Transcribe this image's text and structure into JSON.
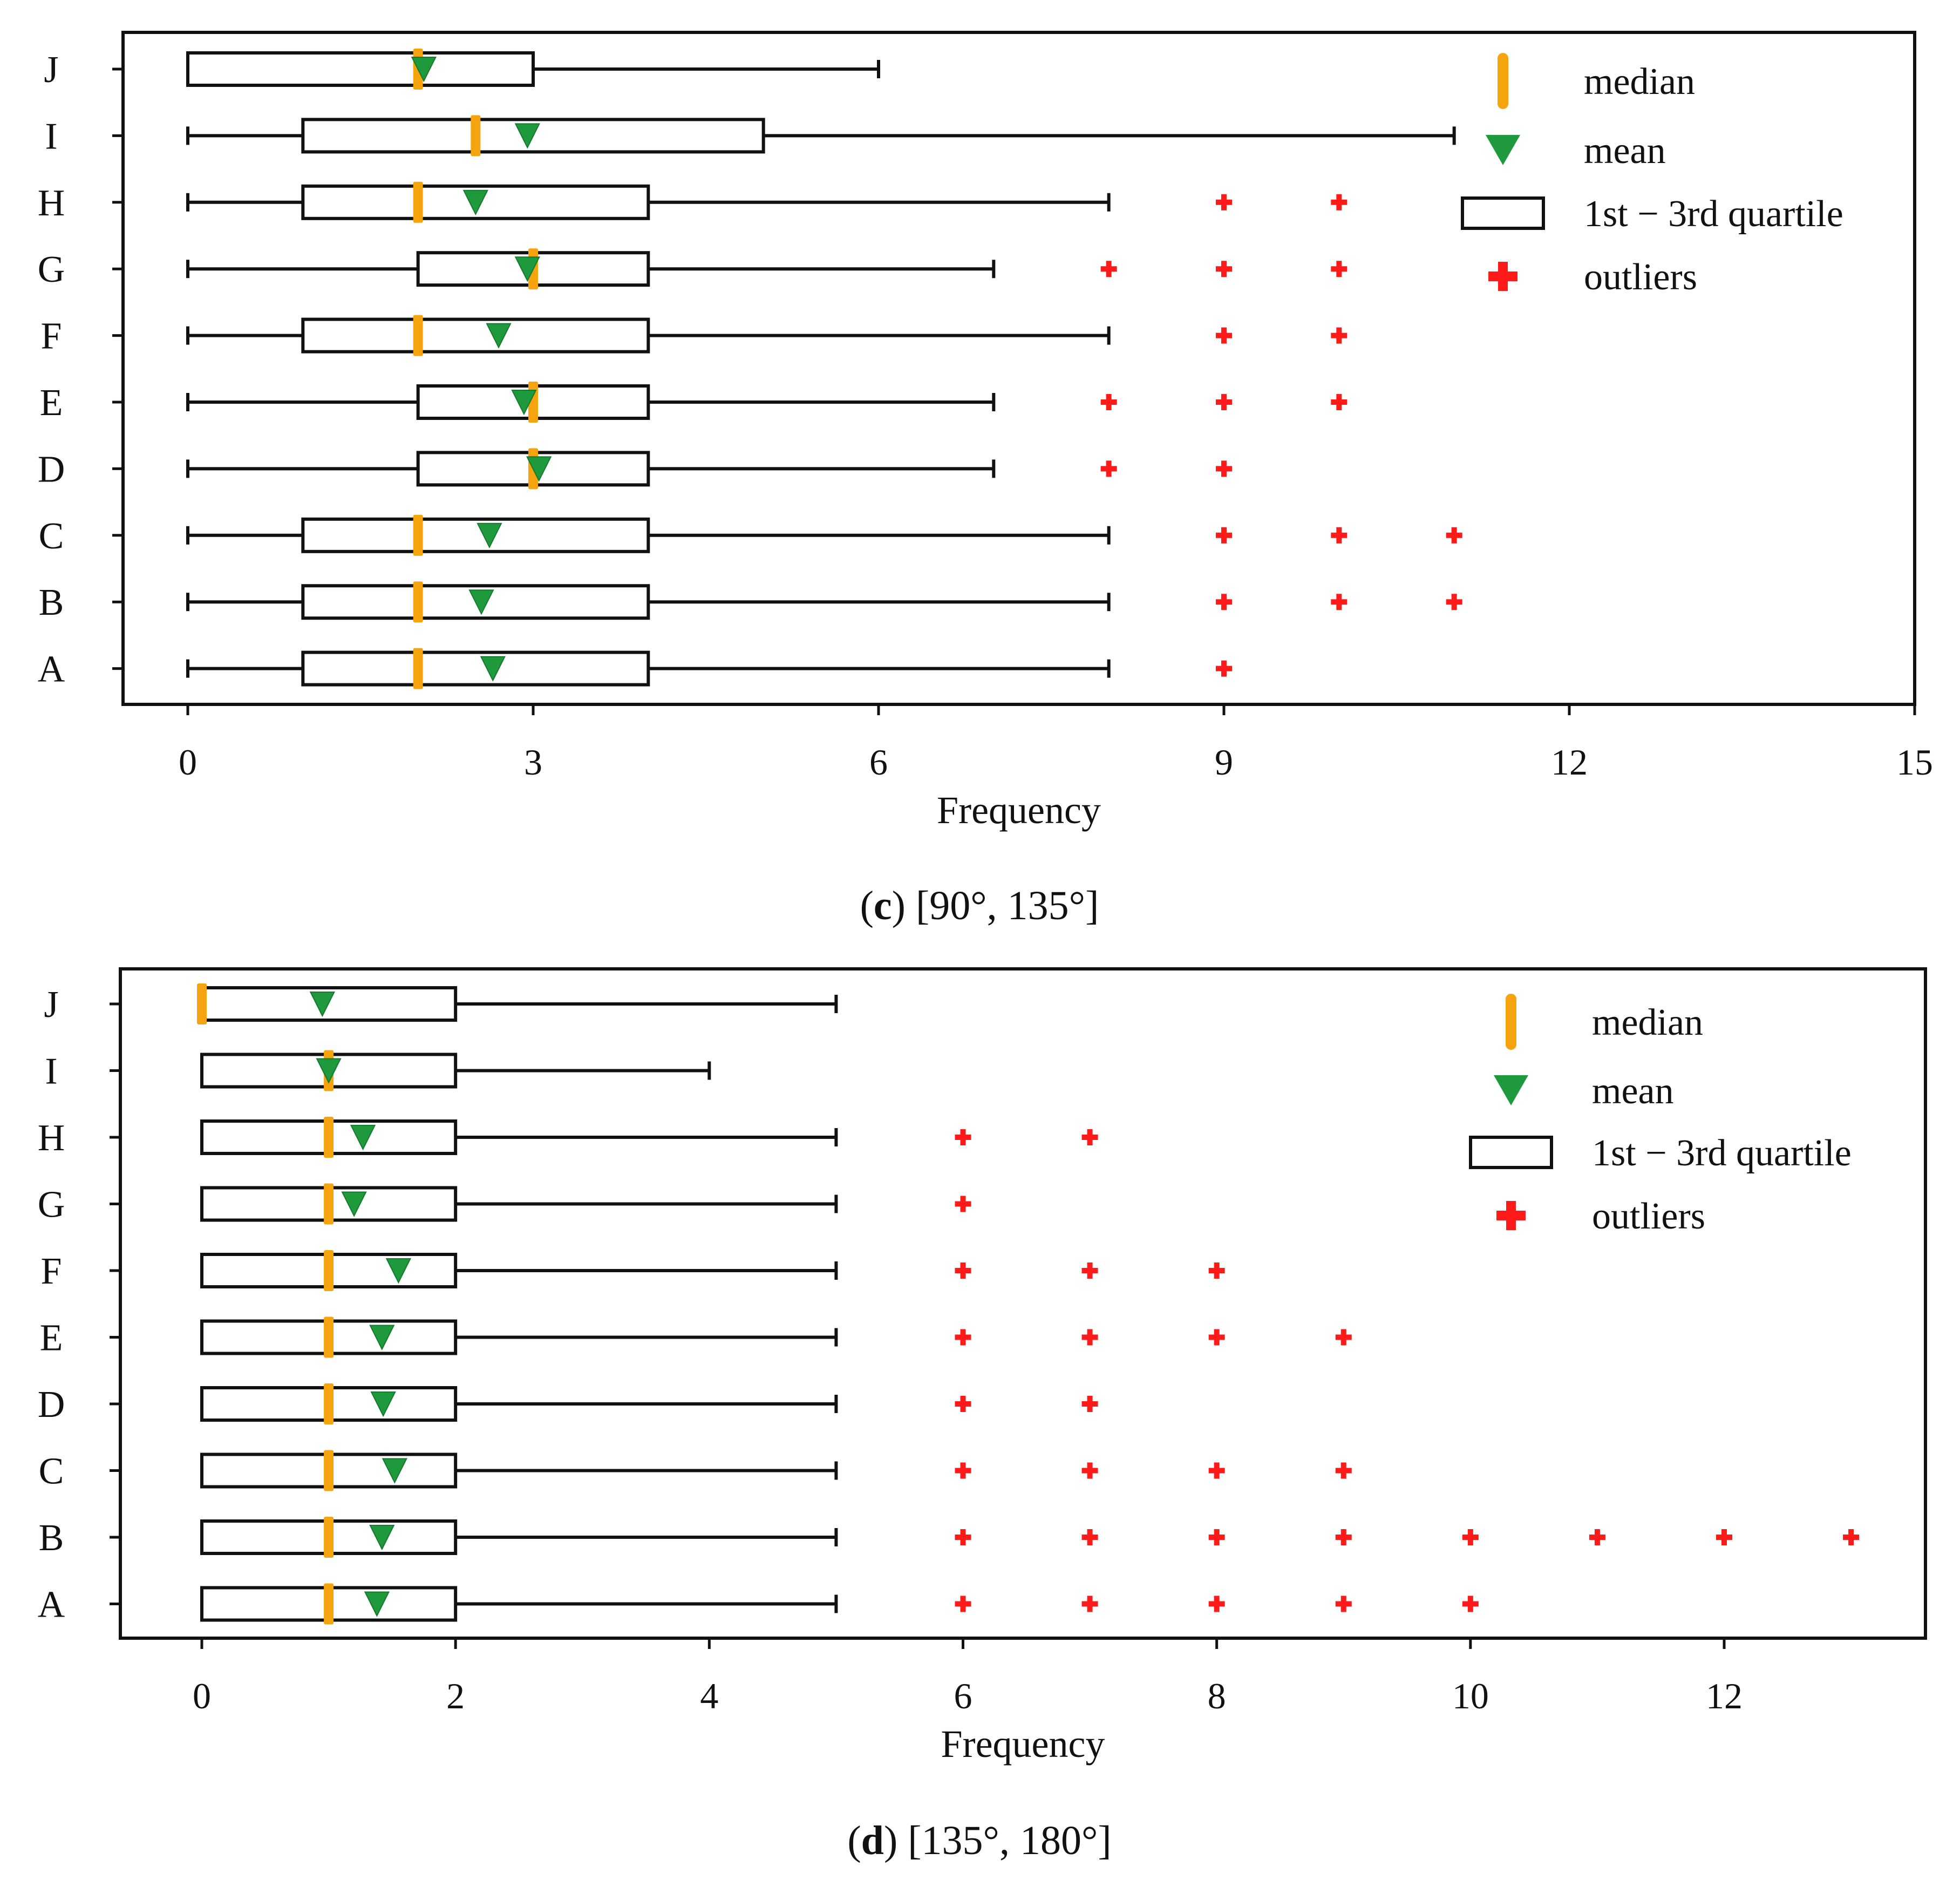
{
  "colors": {
    "median": "#F5A40F",
    "mean": "#1E9A3C",
    "outlier": "#FF1A1A",
    "box": "#111111",
    "frame": "#111111"
  },
  "chart_data": [
    {
      "type": "boxplot",
      "orientation": "horizontal",
      "caption_letter": "c",
      "caption_text": "[90°, 135°]",
      "xlabel": "Frequency",
      "ylabel": "",
      "xlim": [
        -0.9,
        15
      ],
      "xticks": [
        0,
        3,
        6,
        9,
        12,
        15
      ],
      "categories": [
        "J",
        "I",
        "H",
        "G",
        "F",
        "E",
        "D",
        "C",
        "B",
        "A"
      ],
      "series": [
        {
          "name": "J",
          "min": 0,
          "q1": 0,
          "median": 2,
          "q3": 3,
          "max": 6,
          "mean": 2.05,
          "outliers": []
        },
        {
          "name": "I",
          "min": 0,
          "q1": 1,
          "median": 2.5,
          "q3": 5,
          "max": 11,
          "mean": 2.95,
          "outliers": []
        },
        {
          "name": "H",
          "min": 0,
          "q1": 1,
          "median": 2,
          "q3": 4,
          "max": 8,
          "mean": 2.5,
          "outliers": [
            9,
            10
          ]
        },
        {
          "name": "G",
          "min": 0,
          "q1": 2,
          "median": 3,
          "q3": 4,
          "max": 7,
          "mean": 2.95,
          "outliers": [
            8,
            9,
            10
          ]
        },
        {
          "name": "F",
          "min": 0,
          "q1": 1,
          "median": 2,
          "q3": 4,
          "max": 8,
          "mean": 2.7,
          "outliers": [
            9,
            10
          ]
        },
        {
          "name": "E",
          "min": 0,
          "q1": 2,
          "median": 3,
          "q3": 4,
          "max": 7,
          "mean": 2.92,
          "outliers": [
            8,
            9,
            10
          ]
        },
        {
          "name": "D",
          "min": 0,
          "q1": 2,
          "median": 3,
          "q3": 4,
          "max": 7,
          "mean": 3.05,
          "outliers": [
            8,
            9
          ]
        },
        {
          "name": "C",
          "min": 0,
          "q1": 1,
          "median": 2,
          "q3": 4,
          "max": 8,
          "mean": 2.62,
          "outliers": [
            9,
            10,
            11
          ]
        },
        {
          "name": "B",
          "min": 0,
          "q1": 1,
          "median": 2,
          "q3": 4,
          "max": 8,
          "mean": 2.55,
          "outliers": [
            9,
            10,
            11
          ]
        },
        {
          "name": "A",
          "min": 0,
          "q1": 1,
          "median": 2,
          "q3": 4,
          "max": 8,
          "mean": 2.65,
          "outliers": [
            9
          ]
        }
      ],
      "legend": {
        "position": "top-right",
        "entries": [
          {
            "key": "median",
            "label": "median"
          },
          {
            "key": "mean",
            "label": "mean"
          },
          {
            "key": "box",
            "label": "1st − 3rd quartile"
          },
          {
            "key": "outlier",
            "label": "outliers"
          }
        ]
      }
    },
    {
      "type": "boxplot",
      "orientation": "horizontal",
      "caption_letter": "d",
      "caption_text": "[135°, 180°]",
      "xlabel": "Frequency",
      "ylabel": "",
      "xlim": [
        -0.65,
        13.65
      ],
      "xticks": [
        0,
        2,
        4,
        6,
        8,
        10,
        12
      ],
      "categories": [
        "J",
        "I",
        "H",
        "G",
        "F",
        "E",
        "D",
        "C",
        "B",
        "A"
      ],
      "series": [
        {
          "name": "J",
          "min": 0,
          "q1": 0,
          "median": 0,
          "q3": 2,
          "max": 5,
          "mean": 0.95,
          "outliers": []
        },
        {
          "name": "I",
          "min": 0,
          "q1": 0,
          "median": 1,
          "q3": 2,
          "max": 4,
          "mean": 1.0,
          "outliers": []
        },
        {
          "name": "H",
          "min": 0,
          "q1": 0,
          "median": 1,
          "q3": 2,
          "max": 5,
          "mean": 1.27,
          "outliers": [
            6,
            7
          ]
        },
        {
          "name": "G",
          "min": 0,
          "q1": 0,
          "median": 1,
          "q3": 2,
          "max": 5,
          "mean": 1.2,
          "outliers": [
            6
          ]
        },
        {
          "name": "F",
          "min": 0,
          "q1": 0,
          "median": 1,
          "q3": 2,
          "max": 5,
          "mean": 1.55,
          "outliers": [
            6,
            7,
            8
          ]
        },
        {
          "name": "E",
          "min": 0,
          "q1": 0,
          "median": 1,
          "q3": 2,
          "max": 5,
          "mean": 1.42,
          "outliers": [
            6,
            7,
            8,
            9
          ]
        },
        {
          "name": "D",
          "min": 0,
          "q1": 0,
          "median": 1,
          "q3": 2,
          "max": 5,
          "mean": 1.43,
          "outliers": [
            6,
            7
          ]
        },
        {
          "name": "C",
          "min": 0,
          "q1": 0,
          "median": 1,
          "q3": 2,
          "max": 5,
          "mean": 1.52,
          "outliers": [
            6,
            7,
            8,
            9
          ]
        },
        {
          "name": "B",
          "min": 0,
          "q1": 0,
          "median": 1,
          "q3": 2,
          "max": 5,
          "mean": 1.42,
          "outliers": [
            6,
            7,
            8,
            9,
            10,
            11,
            12,
            13
          ]
        },
        {
          "name": "A",
          "min": 0,
          "q1": 0,
          "median": 1,
          "q3": 2,
          "max": 5,
          "mean": 1.38,
          "outliers": [
            6,
            7,
            8,
            9,
            10
          ]
        }
      ],
      "legend": {
        "position": "top-right",
        "entries": [
          {
            "key": "median",
            "label": "median"
          },
          {
            "key": "mean",
            "label": "mean"
          },
          {
            "key": "box",
            "label": "1st − 3rd quartile"
          },
          {
            "key": "outlier",
            "label": "outliers"
          }
        ]
      }
    }
  ]
}
